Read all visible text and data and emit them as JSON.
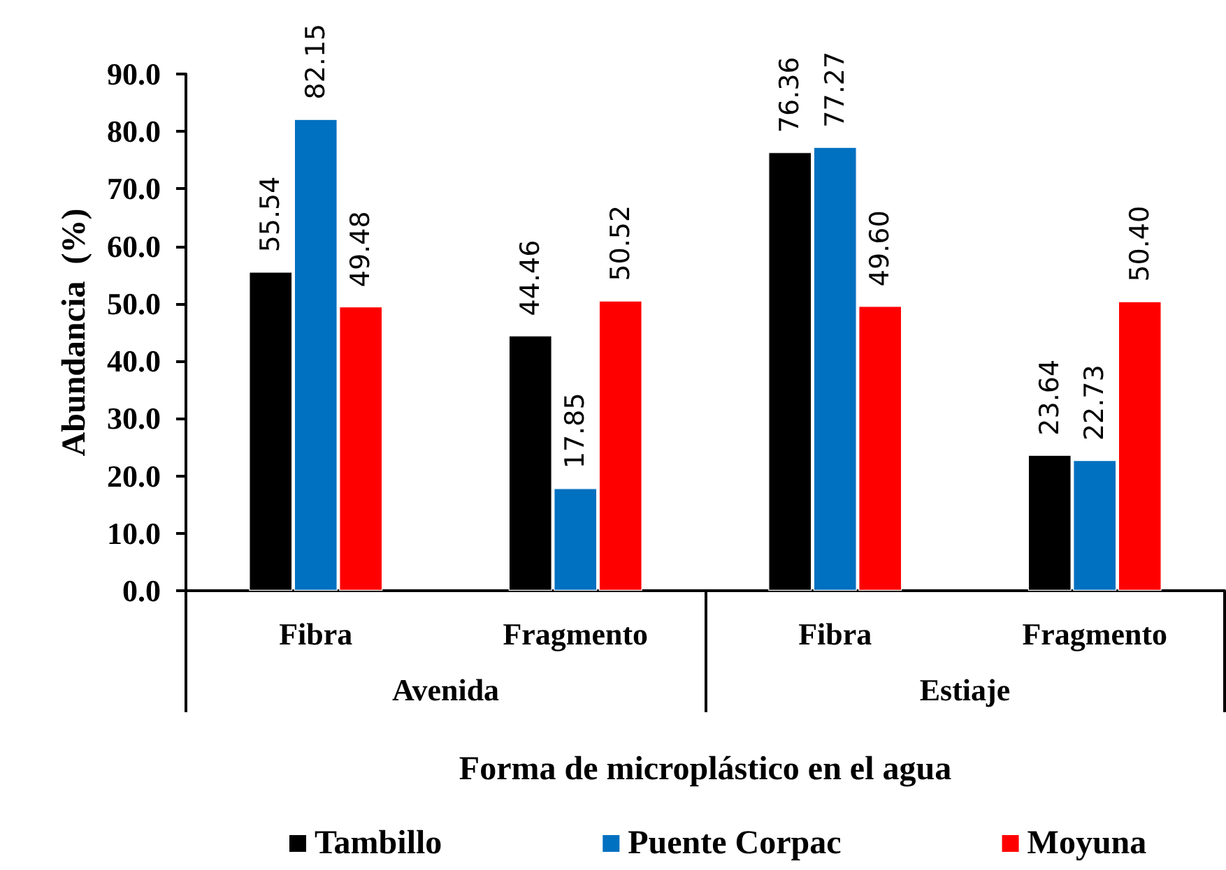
{
  "chart_data": {
    "type": "bar",
    "ylabel": "Abundancia  (%)",
    "xlabel": "Forma de microplástico en el agua",
    "categories": [
      "Fibra",
      "Fragmento",
      "Fibra",
      "Fragmento"
    ],
    "annotations": [
      "Avenida",
      "Estiaje"
    ],
    "series": [
      {
        "name": "Tambillo",
        "color": "#000000",
        "values": [
          55.54,
          44.46,
          76.36,
          23.64
        ],
        "value_labels": [
          "55.54",
          "44.46",
          "76.36",
          "23.64"
        ]
      },
      {
        "name": "Puente Corpac",
        "color": "#0070c0",
        "values": [
          82.15,
          17.85,
          77.27,
          22.73
        ],
        "value_labels": [
          "82.15",
          "17.85",
          "77.27",
          "22.73"
        ]
      },
      {
        "name": "Moyuna",
        "color": "#ff0000",
        "values": [
          49.48,
          50.52,
          49.6,
          50.4
        ],
        "value_labels": [
          "49.48",
          "50.52",
          "49.60",
          "50.40"
        ]
      }
    ],
    "ylim": [
      0,
      90
    ],
    "yticks": [
      {
        "value": 0,
        "label": "0.0"
      },
      {
        "value": 10,
        "label": "10.0"
      },
      {
        "value": 20,
        "label": "20.0"
      },
      {
        "value": 30,
        "label": "30.0"
      },
      {
        "value": 40,
        "label": "40.0"
      },
      {
        "value": 50,
        "label": "50.0"
      },
      {
        "value": 60,
        "label": "60.0"
      },
      {
        "value": 70,
        "label": "70.0"
      },
      {
        "value": 80,
        "label": "80.0"
      },
      {
        "value": 90,
        "label": "90.0"
      }
    ],
    "legend": "bottom"
  }
}
